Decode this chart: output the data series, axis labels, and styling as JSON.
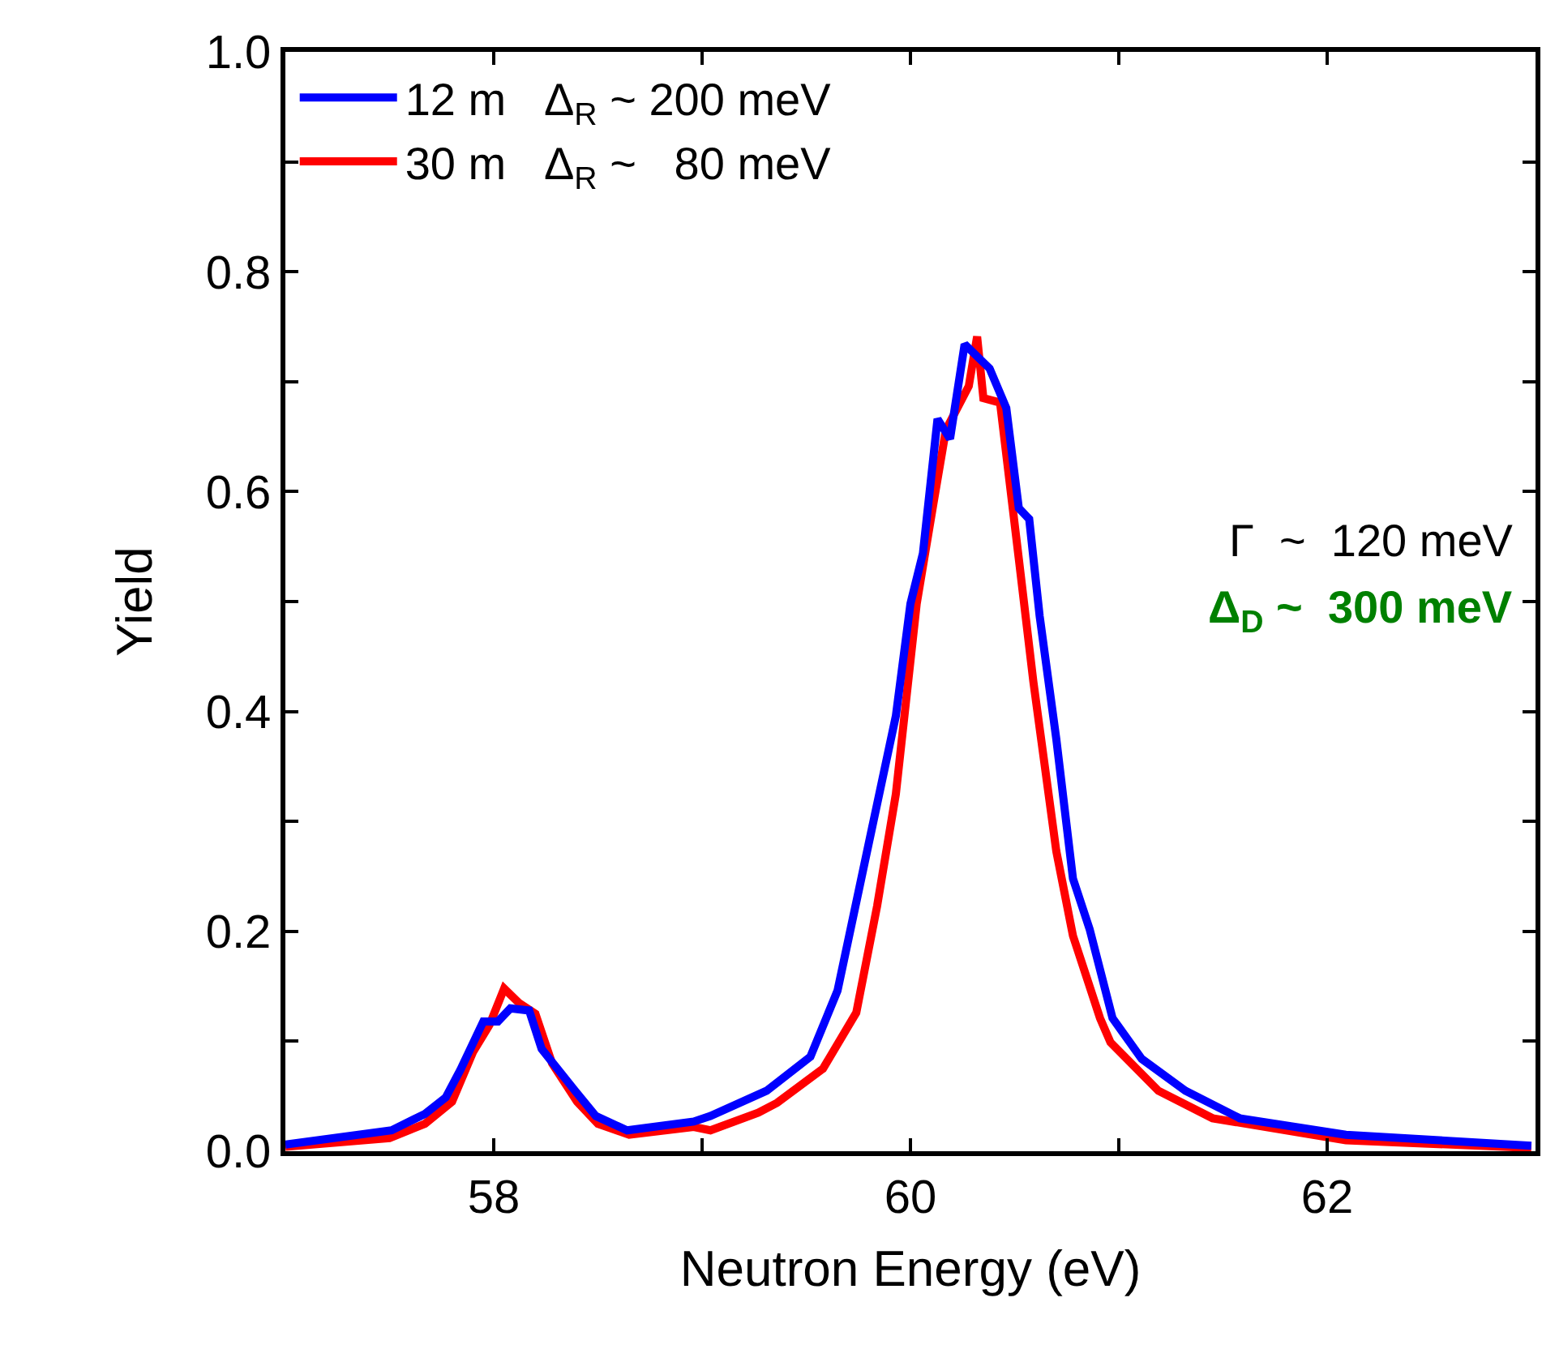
{
  "chart_data": {
    "type": "line",
    "xlabel": "Neutron Energy (eV)",
    "ylabel": "Yield",
    "xlim": [
      57,
      63
    ],
    "ylim": [
      0,
      1.0
    ],
    "xticks": [
      58,
      {
        "value": 59,
        "label": null
      },
      60,
      {
        "value": 61,
        "label": null
      },
      62
    ],
    "yticks": [
      {
        "value": 0,
        "label": "0.0"
      },
      {
        "value": 0.1,
        "label": null
      },
      0.2,
      {
        "value": 0.3,
        "label": null
      },
      0.4,
      {
        "value": 0.5,
        "label": null
      },
      0.6,
      {
        "value": 0.7,
        "label": null
      },
      0.8,
      {
        "value": 0.9,
        "label": null
      },
      {
        "value": 1,
        "label": "1.0"
      }
    ],
    "grid": false,
    "legend": "top left",
    "marker": "none",
    "line_style": "solid",
    "annotations": [
      "Γ  ~  120 meV",
      "Δ$_{D}$ ~  300 meV"
    ],
    "series": [
      {
        "name": "30 m   Δ$_{R}$ ~   80 meV",
        "color": "#ff0000",
        "x": [
          57.0,
          57.5,
          57.67,
          57.8,
          57.9,
          57.98,
          58.05,
          58.12,
          58.2,
          58.28,
          58.4,
          58.5,
          58.65,
          58.96,
          59.04,
          59.27,
          59.36,
          59.58,
          59.74,
          59.84,
          59.93,
          60.03,
          60.11,
          60.17,
          60.28,
          60.32,
          60.35,
          60.43,
          60.52,
          60.59,
          60.7,
          60.78,
          60.91,
          60.96,
          61.19,
          61.45,
          62.09,
          62.98
        ],
        "values": [
          0.004,
          0.012,
          0.025,
          0.045,
          0.09,
          0.115,
          0.148,
          0.135,
          0.125,
          0.08,
          0.045,
          0.025,
          0.015,
          0.022,
          0.019,
          0.035,
          0.044,
          0.075,
          0.126,
          0.223,
          0.325,
          0.498,
          0.589,
          0.656,
          0.696,
          0.741,
          0.685,
          0.681,
          0.539,
          0.427,
          0.273,
          0.196,
          0.121,
          0.099,
          0.055,
          0.03,
          0.01,
          0.003
        ]
      },
      {
        "name": "12 m   Δ$_{R}$ ~ 200 meV",
        "color": "#0000ff",
        "x": [
          57.0,
          57.51,
          57.67,
          57.77,
          57.84,
          57.95,
          58.02,
          58.08,
          58.17,
          58.23,
          58.39,
          58.49,
          58.64,
          58.96,
          59.04,
          59.31,
          59.52,
          59.65,
          59.82,
          59.93,
          60.0,
          60.06,
          60.13,
          60.19,
          60.26,
          60.38,
          60.46,
          60.52,
          60.57,
          60.62,
          60.7,
          60.78,
          60.86,
          60.97,
          61.11,
          61.32,
          61.58,
          62.09,
          62.98
        ],
        "values": [
          0.006,
          0.019,
          0.034,
          0.049,
          0.074,
          0.118,
          0.118,
          0.13,
          0.128,
          0.093,
          0.055,
          0.032,
          0.019,
          0.027,
          0.032,
          0.055,
          0.086,
          0.146,
          0.298,
          0.396,
          0.498,
          0.544,
          0.666,
          0.648,
          0.734,
          0.712,
          0.676,
          0.585,
          0.575,
          0.487,
          0.375,
          0.248,
          0.202,
          0.121,
          0.084,
          0.055,
          0.03,
          0.015,
          0.005
        ]
      }
    ]
  }
}
